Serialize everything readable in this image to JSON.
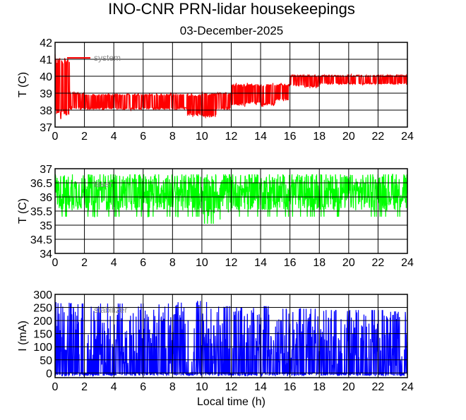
{
  "title": "INO-CNR PRN-lidar housekeepings",
  "subtitle": "03-December-2025",
  "chart_data": [
    {
      "type": "line",
      "ylabel": "T (C)",
      "xlabel": "",
      "xlim": [
        0,
        24
      ],
      "ylim": [
        37,
        42
      ],
      "xticks": [
        0,
        2,
        4,
        6,
        8,
        10,
        12,
        14,
        16,
        18,
        20,
        22,
        24
      ],
      "yticks": [
        37,
        38,
        39,
        40,
        41,
        42
      ],
      "grid": true,
      "legend": "top-left",
      "series": [
        {
          "name": "system",
          "color": "#ff0000",
          "note": "dense noisy signal, hourly min/max envelope",
          "hours": [
            0,
            1,
            2,
            3,
            4,
            5,
            6,
            7,
            8,
            9,
            10,
            11,
            12,
            13,
            14,
            15,
            16,
            17,
            18,
            19,
            20,
            21,
            22,
            23
          ],
          "min": [
            37.5,
            38,
            38,
            38,
            38,
            38,
            38,
            38,
            38,
            37.6,
            37.5,
            38,
            38.2,
            38.3,
            38.2,
            38.5,
            39.4,
            39.3,
            39.5,
            39.5,
            39.5,
            39.5,
            39.5,
            39.5
          ],
          "max": [
            41.3,
            39.1,
            39,
            39,
            39,
            39,
            39,
            39,
            39,
            39,
            39.1,
            39.1,
            39.6,
            39.6,
            39.6,
            39.6,
            40.1,
            40.1,
            40.1,
            40.1,
            40.1,
            40.1,
            40.1,
            40.1
          ]
        }
      ]
    },
    {
      "type": "line",
      "ylabel": "T (C)",
      "xlabel": "",
      "xlim": [
        0,
        24
      ],
      "ylim": [
        34,
        37
      ],
      "xticks": [
        0,
        2,
        4,
        6,
        8,
        10,
        12,
        14,
        16,
        18,
        20,
        22,
        24
      ],
      "yticks": [
        34,
        34.5,
        35,
        35.5,
        36,
        36.5,
        37
      ],
      "grid": true,
      "legend": "top-left",
      "series": [
        {
          "name": "laser",
          "color": "#00ff00",
          "hours": [
            0,
            1,
            2,
            3,
            4,
            5,
            6,
            7,
            8,
            9,
            10,
            11,
            12,
            13,
            14,
            15,
            16,
            17,
            18,
            19,
            20,
            21,
            22,
            23
          ],
          "min": [
            35.3,
            35.3,
            35.3,
            35.3,
            35.3,
            35.3,
            35.3,
            35.3,
            35.3,
            35.3,
            35.05,
            35.2,
            35.3,
            35.3,
            35.3,
            35.3,
            35.3,
            35.3,
            35.3,
            35.3,
            35.3,
            35.3,
            35.3,
            35.3
          ],
          "max": [
            36.8,
            36.8,
            36.8,
            36.8,
            36.8,
            36.8,
            36.8,
            36.8,
            36.8,
            36.8,
            36.8,
            36.8,
            36.8,
            36.8,
            36.8,
            36.8,
            36.8,
            36.8,
            36.8,
            36.8,
            36.8,
            36.8,
            36.8,
            36.8
          ]
        }
      ]
    },
    {
      "type": "line",
      "ylabel": "I (mA)",
      "xlabel": "Local time (h)",
      "xlim": [
        0,
        24
      ],
      "ylim": [
        -18,
        300
      ],
      "xticks": [
        0,
        2,
        4,
        6,
        8,
        10,
        12,
        14,
        16,
        18,
        20,
        22,
        24
      ],
      "yticks": [
        0,
        50,
        100,
        150,
        200,
        250,
        300
      ],
      "grid": true,
      "legend": "top-left",
      "series": [
        {
          "name": "stabilizer",
          "color": "#0000ff",
          "hours": [
            0,
            1,
            2,
            3,
            4,
            5,
            6,
            7,
            8,
            9,
            10,
            11,
            12,
            13,
            14,
            15,
            16,
            17,
            18,
            19,
            20,
            21,
            22,
            23
          ],
          "min": [
            -12,
            -10,
            -10,
            -10,
            -10,
            -10,
            -10,
            -10,
            -10,
            -10,
            -10,
            -10,
            -10,
            -10,
            -10,
            -10,
            -10,
            -10,
            -10,
            -10,
            -10,
            -10,
            -10,
            -10
          ],
          "max": [
            270,
            265,
            265,
            265,
            265,
            265,
            265,
            265,
            270,
            275,
            275,
            255,
            250,
            250,
            255,
            245,
            245,
            245,
            240,
            240,
            240,
            240,
            240,
            235
          ]
        }
      ]
    }
  ]
}
